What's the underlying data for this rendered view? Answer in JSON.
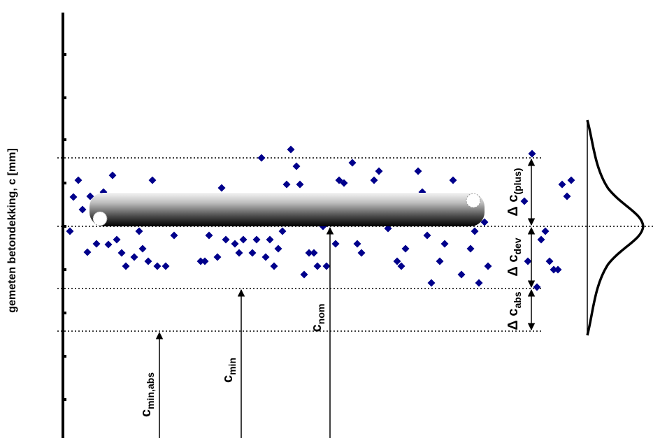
{
  "axis_label": "gemeten betondekking, c [mm]",
  "labels": [
    {
      "main": "c",
      "sub": "min,abs"
    },
    {
      "main": "c",
      "sub": "min"
    },
    {
      "main": "c",
      "sub": "nom"
    },
    {
      "main": "Δ c",
      "sub": "(plus)"
    },
    {
      "main": "Δ c",
      "sub": "dev"
    },
    {
      "main": "Δ c",
      "sub": "abs"
    }
  ]
}
